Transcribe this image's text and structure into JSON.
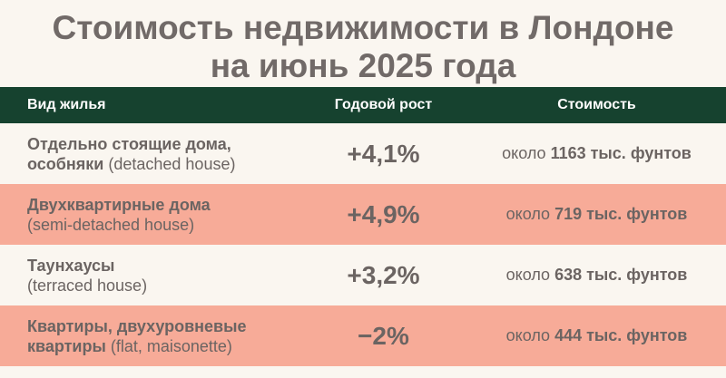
{
  "title": {
    "line1": "Стоимость недвижимости в Лондоне",
    "line2": "на июнь 2025 года"
  },
  "header": {
    "type": "Вид жилья",
    "growth": "Годовой рост",
    "cost": "Стоимость"
  },
  "rows": [
    {
      "name_ru": "Отдельно стоящие дома, особняки",
      "name_en": "(detached house)",
      "growth": "+4,1%",
      "cost_prefix": "около",
      "cost_value": "1163 тыс. фунтов"
    },
    {
      "name_ru": "Двухквартирные дома",
      "name_en": "(semi-detached house)",
      "growth": "+4,9%",
      "cost_prefix": "около",
      "cost_value": "719 тыс. фунтов"
    },
    {
      "name_ru": "Таунхаусы",
      "name_en": "(terraced house)",
      "growth": "+3,2%",
      "cost_prefix": "около",
      "cost_value": "638 тыс. фунтов"
    },
    {
      "name_ru": "Квартиры, двухуровневые квартиры",
      "name_en": "(flat, maisonette)",
      "growth": "−2%",
      "cost_prefix": "около",
      "cost_value": "444 тыс. фунтов"
    }
  ],
  "colors": {
    "header_bg": "#16422f",
    "alt_row_bg": "#f7ab98",
    "page_bg": "#faf6f0",
    "text": "#6b6462"
  }
}
